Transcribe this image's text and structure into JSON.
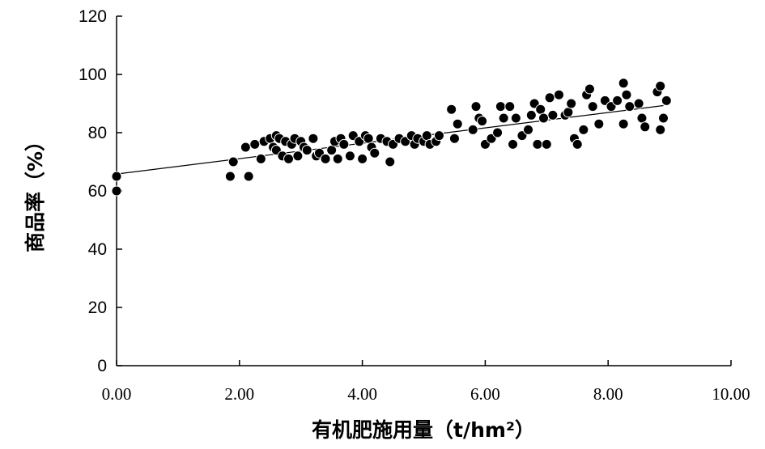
{
  "chart_data": {
    "type": "scatter",
    "xlabel": "有机肥施用量（t/hm²）",
    "ylabel": "商品率（%）",
    "xlim": [
      0,
      10
    ],
    "ylim": [
      0,
      120
    ],
    "x_ticks": [
      "0.00",
      "2.00",
      "4.00",
      "6.00",
      "8.00",
      "10.00"
    ],
    "y_ticks": [
      "0",
      "20",
      "40",
      "60",
      "80",
      "100",
      "120"
    ],
    "grid": false,
    "legend": "none",
    "trendline": {
      "type": "linear",
      "x": [
        0,
        8.9
      ],
      "y": [
        65.8,
        89.3
      ]
    },
    "series": [
      {
        "x": [
          0.0,
          0.0,
          1.85,
          1.9,
          2.1,
          2.15,
          2.25,
          2.35,
          2.4,
          2.5,
          2.55,
          2.6,
          2.6,
          2.65,
          2.7,
          2.75,
          2.8,
          2.85,
          2.9,
          2.95,
          3.0,
          3.05,
          3.1,
          3.2,
          3.25,
          3.3,
          3.4,
          3.5,
          3.55,
          3.6,
          3.65,
          3.7,
          3.8,
          3.85,
          3.95,
          4.0,
          4.05,
          4.1,
          4.15,
          4.2,
          4.3,
          4.4,
          4.45,
          4.5,
          4.6,
          4.7,
          4.8,
          4.85,
          4.9,
          5.0,
          5.05,
          5.1,
          5.2,
          5.25,
          5.45,
          5.5,
          5.55,
          5.8,
          5.85,
          5.9,
          5.95,
          6.0,
          6.1,
          6.2,
          6.25,
          6.3,
          6.4,
          6.45,
          6.5,
          6.6,
          6.7,
          6.75,
          6.8,
          6.85,
          6.9,
          6.95,
          7.0,
          7.05,
          7.1,
          7.2,
          7.3,
          7.35,
          7.4,
          7.45,
          7.5,
          7.6,
          7.65,
          7.7,
          7.75,
          7.85,
          7.95,
          8.05,
          8.15,
          8.25,
          8.25,
          8.3,
          8.35,
          8.5,
          8.55,
          8.6,
          8.8,
          8.85,
          8.85,
          8.9,
          8.95
        ],
        "y": [
          60,
          65,
          65,
          70,
          75,
          65,
          76,
          71,
          77,
          78,
          75,
          79,
          74,
          78,
          72,
          77,
          71,
          76,
          78,
          72,
          77,
          75,
          74,
          78,
          72,
          73,
          71,
          74,
          77,
          71,
          78,
          76,
          72,
          79,
          77,
          71,
          79,
          78,
          75,
          73,
          78,
          77,
          70,
          76,
          78,
          77,
          79,
          76,
          78,
          77,
          79,
          76,
          77,
          79,
          88,
          78,
          83,
          81,
          89,
          85,
          84,
          76,
          78,
          80,
          89,
          85,
          89,
          76,
          85,
          79,
          81,
          86,
          90,
          76,
          88,
          85,
          76,
          92,
          86,
          93,
          86,
          87,
          90,
          78,
          76,
          81,
          93,
          95,
          89,
          83,
          91,
          89,
          91,
          97,
          83,
          93,
          89,
          90,
          85,
          82,
          94,
          96,
          81,
          85,
          91
        ]
      }
    ]
  }
}
